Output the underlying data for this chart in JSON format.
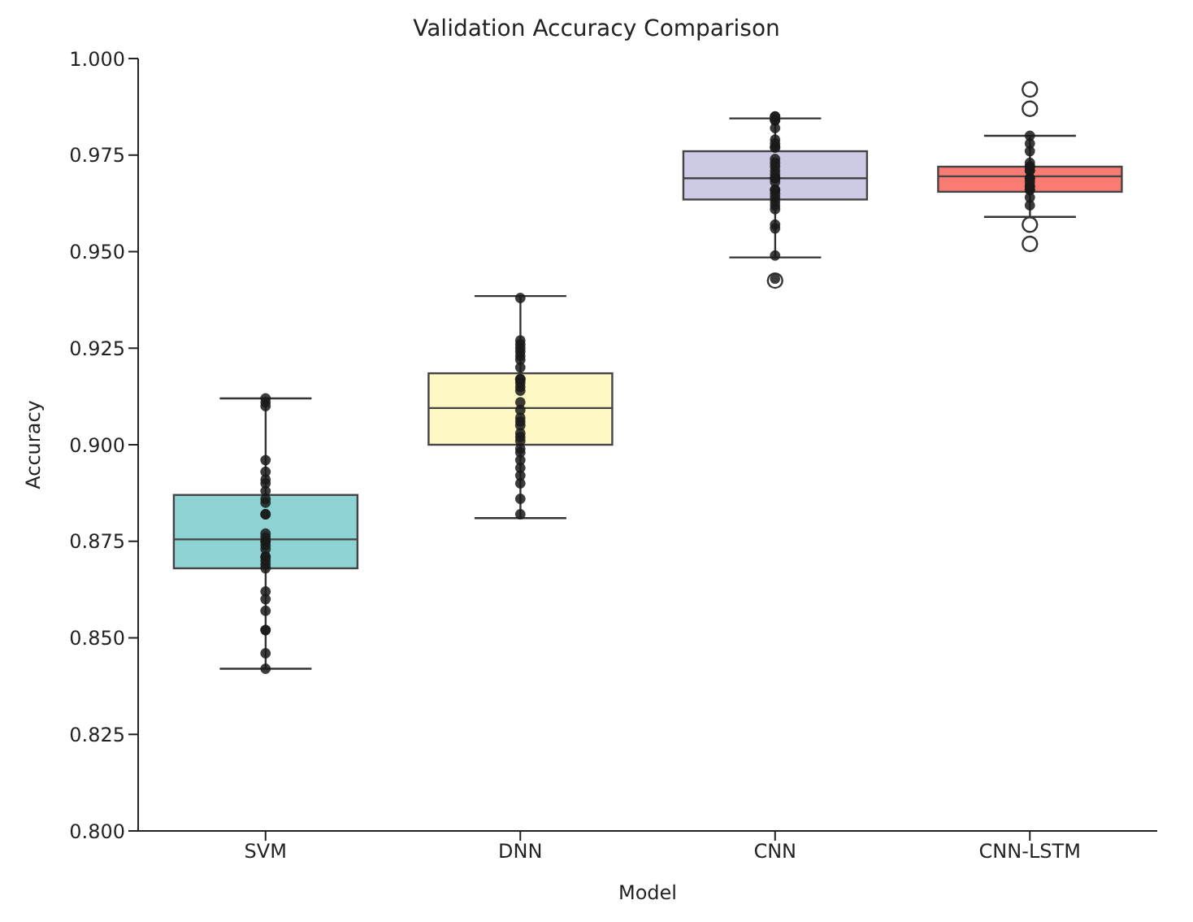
{
  "chart_data": {
    "type": "box",
    "title": "Validation Accuracy Comparison",
    "xlabel": "Model",
    "ylabel": "Accuracy",
    "categories": [
      "SVM",
      "DNN",
      "CNN",
      "CNN-LSTM"
    ],
    "colors": [
      "#8dd3d3",
      "#fdf8c4",
      "#cdcae6",
      "#f97b72"
    ],
    "boxes": [
      {
        "low": 0.842,
        "q1": 0.868,
        "median": 0.8755,
        "q3": 0.887,
        "high": 0.912
      },
      {
        "low": 0.881,
        "q1": 0.9,
        "median": 0.9095,
        "q3": 0.9185,
        "high": 0.9385
      },
      {
        "low": 0.9485,
        "q1": 0.9635,
        "median": 0.969,
        "q3": 0.976,
        "high": 0.9845,
        "outliers": [
          0.9425
        ]
      },
      {
        "low": 0.959,
        "q1": 0.9655,
        "median": 0.9695,
        "q3": 0.972,
        "high": 0.98,
        "outliers": [
          0.992,
          0.987,
          0.957,
          0.952
        ]
      }
    ],
    "series": [
      {
        "type": "scatter",
        "color": "#1a1a1a",
        "x": [
          "SVM",
          "SVM",
          "SVM",
          "SVM",
          "SVM",
          "SVM",
          "SVM",
          "SVM",
          "SVM",
          "SVM",
          "SVM",
          "SVM",
          "SVM",
          "SVM",
          "SVM",
          "SVM",
          "SVM",
          "SVM",
          "SVM",
          "SVM",
          "SVM",
          "SVM",
          "SVM",
          "SVM",
          "SVM",
          "SVM",
          "SVM",
          "SVM",
          "SVM",
          "SVM",
          "DNN",
          "DNN",
          "DNN",
          "DNN",
          "DNN",
          "DNN",
          "DNN",
          "DNN",
          "DNN",
          "DNN",
          "DNN",
          "DNN",
          "DNN",
          "DNN",
          "DNN",
          "DNN",
          "DNN",
          "DNN",
          "DNN",
          "DNN",
          "DNN",
          "DNN",
          "DNN",
          "DNN",
          "DNN",
          "DNN",
          "DNN",
          "DNN",
          "DNN",
          "CNN",
          "CNN",
          "CNN",
          "CNN",
          "CNN",
          "CNN",
          "CNN",
          "CNN",
          "CNN",
          "CNN",
          "CNN",
          "CNN",
          "CNN",
          "CNN",
          "CNN",
          "CNN",
          "CNN",
          "CNN",
          "CNN",
          "CNN",
          "CNN",
          "CNN",
          "CNN",
          "CNN",
          "CNN",
          "CNN",
          "CNN",
          "CNN",
          "CNN-LSTM",
          "CNN-LSTM",
          "CNN-LSTM",
          "CNN-LSTM",
          "CNN-LSTM",
          "CNN-LSTM",
          "CNN-LSTM",
          "CNN-LSTM",
          "CNN-LSTM",
          "CNN-LSTM",
          "CNN-LSTM",
          "CNN-LSTM",
          "CNN-LSTM",
          "CNN-LSTM",
          "CNN-LSTM",
          "CNN-LSTM",
          "CNN-LSTM"
        ],
        "values": [
          0.912,
          0.911,
          0.91,
          0.896,
          0.893,
          0.891,
          0.89,
          0.888,
          0.886,
          0.885,
          0.882,
          0.882,
          0.877,
          0.876,
          0.875,
          0.875,
          0.874,
          0.873,
          0.871,
          0.871,
          0.87,
          0.869,
          0.868,
          0.862,
          0.86,
          0.857,
          0.852,
          0.852,
          0.846,
          0.842,
          0.938,
          0.927,
          0.926,
          0.925,
          0.924,
          0.923,
          0.922,
          0.92,
          0.917,
          0.917,
          0.916,
          0.915,
          0.914,
          0.911,
          0.909,
          0.907,
          0.906,
          0.905,
          0.903,
          0.902,
          0.901,
          0.899,
          0.898,
          0.896,
          0.894,
          0.892,
          0.89,
          0.886,
          0.882,
          0.985,
          0.985,
          0.984,
          0.984,
          0.982,
          0.979,
          0.978,
          0.977,
          0.977,
          0.974,
          0.973,
          0.972,
          0.971,
          0.97,
          0.969,
          0.969,
          0.968,
          0.966,
          0.966,
          0.965,
          0.964,
          0.963,
          0.962,
          0.961,
          0.957,
          0.956,
          0.949,
          0.943,
          0.98,
          0.978,
          0.976,
          0.973,
          0.972,
          0.972,
          0.971,
          0.971,
          0.969,
          0.969,
          0.968,
          0.967,
          0.967,
          0.966,
          0.966,
          0.964,
          0.962
        ]
      }
    ],
    "ylim": [
      0.8,
      1.0
    ],
    "yticks": [
      {
        "value": 0.8,
        "label": "0.800"
      },
      {
        "value": 0.825,
        "label": "0.825"
      },
      {
        "value": 0.85,
        "label": "0.850"
      },
      {
        "value": 0.875,
        "label": "0.875"
      },
      {
        "value": 0.9,
        "label": "0.900"
      },
      {
        "value": 0.925,
        "label": "0.925"
      },
      {
        "value": 0.95,
        "label": "0.950"
      },
      {
        "value": 0.975,
        "label": "0.975"
      },
      {
        "value": 1.0,
        "label": "1.000"
      }
    ],
    "grid": false
  }
}
